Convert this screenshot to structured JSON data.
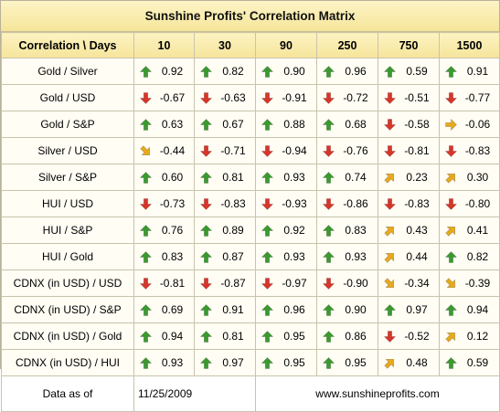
{
  "title": "Sunshine Profits' Correlation Matrix",
  "header": {
    "corner": "Correlation \\ Days",
    "periods": [
      "10",
      "30",
      "90",
      "250",
      "750",
      "1500"
    ]
  },
  "colors": {
    "up": "#3a9a2e",
    "down": "#d8352a",
    "up_right": "#e8a91c",
    "down_right": "#e8a91c",
    "right": "#e8a91c"
  },
  "icons": {
    "up": "up-arrow-icon",
    "down": "down-arrow-icon",
    "up_right": "up-right-arrow-icon",
    "down_right": "down-right-arrow-icon",
    "right": "right-arrow-icon"
  },
  "rows": [
    {
      "label": "Gold / Silver",
      "cells": [
        {
          "dir": "up",
          "value": "0.92"
        },
        {
          "dir": "up",
          "value": "0.82"
        },
        {
          "dir": "up",
          "value": "0.90"
        },
        {
          "dir": "up",
          "value": "0.96"
        },
        {
          "dir": "up",
          "value": "0.59"
        },
        {
          "dir": "up",
          "value": "0.91"
        }
      ]
    },
    {
      "label": "Gold / USD",
      "cells": [
        {
          "dir": "down",
          "value": "-0.67"
        },
        {
          "dir": "down",
          "value": "-0.63"
        },
        {
          "dir": "down",
          "value": "-0.91"
        },
        {
          "dir": "down",
          "value": "-0.72"
        },
        {
          "dir": "down",
          "value": "-0.51"
        },
        {
          "dir": "down",
          "value": "-0.77"
        }
      ]
    },
    {
      "label": "Gold / S&P",
      "cells": [
        {
          "dir": "up",
          "value": "0.63"
        },
        {
          "dir": "up",
          "value": "0.67"
        },
        {
          "dir": "up",
          "value": "0.88"
        },
        {
          "dir": "up",
          "value": "0.68"
        },
        {
          "dir": "down",
          "value": "-0.58"
        },
        {
          "dir": "right",
          "value": "-0.06"
        }
      ]
    },
    {
      "label": "Silver / USD",
      "cells": [
        {
          "dir": "down_right",
          "value": "-0.44"
        },
        {
          "dir": "down",
          "value": "-0.71"
        },
        {
          "dir": "down",
          "value": "-0.94"
        },
        {
          "dir": "down",
          "value": "-0.76"
        },
        {
          "dir": "down",
          "value": "-0.81"
        },
        {
          "dir": "down",
          "value": "-0.83"
        }
      ]
    },
    {
      "label": "Silver / S&P",
      "cells": [
        {
          "dir": "up",
          "value": "0.60"
        },
        {
          "dir": "up",
          "value": "0.81"
        },
        {
          "dir": "up",
          "value": "0.93"
        },
        {
          "dir": "up",
          "value": "0.74"
        },
        {
          "dir": "up_right",
          "value": "0.23"
        },
        {
          "dir": "up_right",
          "value": "0.30"
        }
      ]
    },
    {
      "label": "HUI / USD",
      "cells": [
        {
          "dir": "down",
          "value": "-0.73"
        },
        {
          "dir": "down",
          "value": "-0.83"
        },
        {
          "dir": "down",
          "value": "-0.93"
        },
        {
          "dir": "down",
          "value": "-0.86"
        },
        {
          "dir": "down",
          "value": "-0.83"
        },
        {
          "dir": "down",
          "value": "-0.80"
        }
      ]
    },
    {
      "label": "HUI / S&P",
      "cells": [
        {
          "dir": "up",
          "value": "0.76"
        },
        {
          "dir": "up",
          "value": "0.89"
        },
        {
          "dir": "up",
          "value": "0.92"
        },
        {
          "dir": "up",
          "value": "0.83"
        },
        {
          "dir": "up_right",
          "value": "0.43"
        },
        {
          "dir": "up_right",
          "value": "0.41"
        }
      ]
    },
    {
      "label": "HUI / Gold",
      "cells": [
        {
          "dir": "up",
          "value": "0.83"
        },
        {
          "dir": "up",
          "value": "0.87"
        },
        {
          "dir": "up",
          "value": "0.93"
        },
        {
          "dir": "up",
          "value": "0.93"
        },
        {
          "dir": "up_right",
          "value": "0.44"
        },
        {
          "dir": "up",
          "value": "0.82"
        }
      ]
    },
    {
      "label": "CDNX (in USD) / USD",
      "cells": [
        {
          "dir": "down",
          "value": "-0.81"
        },
        {
          "dir": "down",
          "value": "-0.87"
        },
        {
          "dir": "down",
          "value": "-0.97"
        },
        {
          "dir": "down",
          "value": "-0.90"
        },
        {
          "dir": "down_right",
          "value": "-0.34"
        },
        {
          "dir": "down_right",
          "value": "-0.39"
        }
      ]
    },
    {
      "label": "CDNX (in USD) / S&P",
      "cells": [
        {
          "dir": "up",
          "value": "0.69"
        },
        {
          "dir": "up",
          "value": "0.91"
        },
        {
          "dir": "up",
          "value": "0.96"
        },
        {
          "dir": "up",
          "value": "0.90"
        },
        {
          "dir": "up",
          "value": "0.97"
        },
        {
          "dir": "up",
          "value": "0.94"
        }
      ]
    },
    {
      "label": "CDNX (in USD) / Gold",
      "cells": [
        {
          "dir": "up",
          "value": "0.94"
        },
        {
          "dir": "up",
          "value": "0.81"
        },
        {
          "dir": "up",
          "value": "0.95"
        },
        {
          "dir": "up",
          "value": "0.86"
        },
        {
          "dir": "down",
          "value": "-0.52"
        },
        {
          "dir": "up_right",
          "value": "0.12"
        }
      ]
    },
    {
      "label": "CDNX (in USD) / HUI",
      "cells": [
        {
          "dir": "up",
          "value": "0.93"
        },
        {
          "dir": "up",
          "value": "0.97"
        },
        {
          "dir": "up",
          "value": "0.95"
        },
        {
          "dir": "up",
          "value": "0.95"
        },
        {
          "dir": "up_right",
          "value": "0.48"
        },
        {
          "dir": "up",
          "value": "0.59"
        }
      ]
    }
  ],
  "footer": {
    "label": "Data as of",
    "date": "11/25/2009",
    "url": "www.sunshineprofits.com"
  }
}
